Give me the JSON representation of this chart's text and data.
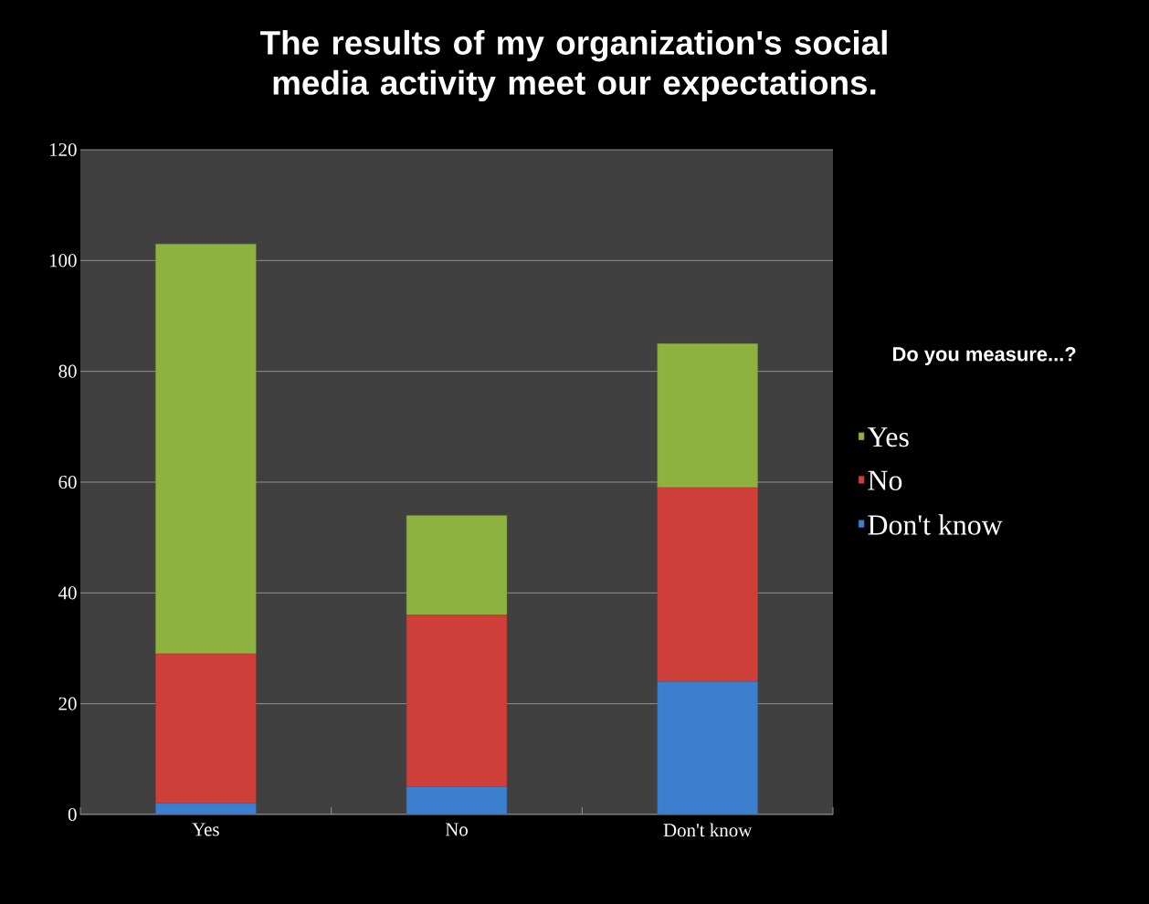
{
  "chart_data": {
    "type": "bar",
    "stacked": true,
    "title": "The results of my organization's social media activity meet our expectations.",
    "categories": [
      "Yes",
      "No",
      "Don't know"
    ],
    "series": [
      {
        "name": "Don't know",
        "color": "#3d7fcf",
        "values": [
          2,
          5,
          24
        ]
      },
      {
        "name": "No",
        "color": "#cf3f3a",
        "values": [
          27,
          31,
          35
        ]
      },
      {
        "name": "Yes",
        "color": "#8db23f",
        "values": [
          74,
          18,
          26
        ]
      }
    ],
    "legend_title": "Do you measure...?",
    "legend": "right",
    "ylim": [
      0,
      120
    ],
    "yticks": [
      0,
      20,
      40,
      60,
      80,
      100,
      120
    ],
    "grid": "y"
  }
}
